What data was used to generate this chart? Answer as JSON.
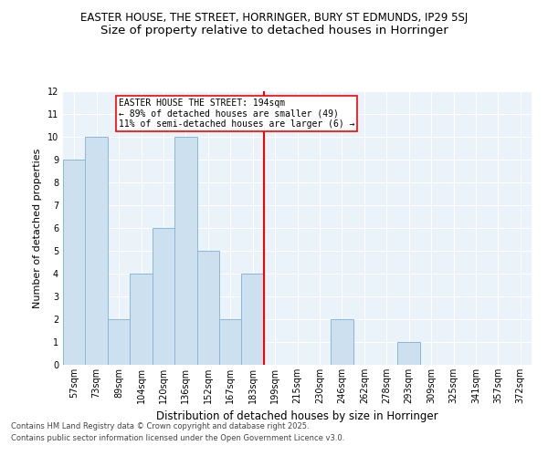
{
  "title1": "EASTER HOUSE, THE STREET, HORRINGER, BURY ST EDMUNDS, IP29 5SJ",
  "title2": "Size of property relative to detached houses in Horringer",
  "xlabel": "Distribution of detached houses by size in Horringer",
  "ylabel": "Number of detached properties",
  "categories": [
    "57sqm",
    "73sqm",
    "89sqm",
    "104sqm",
    "120sqm",
    "136sqm",
    "152sqm",
    "167sqm",
    "183sqm",
    "199sqm",
    "215sqm",
    "230sqm",
    "246sqm",
    "262sqm",
    "278sqm",
    "293sqm",
    "309sqm",
    "325sqm",
    "341sqm",
    "357sqm",
    "372sqm"
  ],
  "values": [
    9,
    10,
    2,
    4,
    6,
    10,
    5,
    2,
    4,
    0,
    0,
    0,
    2,
    0,
    0,
    1,
    0,
    0,
    0,
    0,
    0
  ],
  "bar_color": "#cce0f0",
  "bar_edge_color": "#8ab8d8",
  "reference_line_x": 8.5,
  "annotation_title": "EASTER HOUSE THE STREET: 194sqm",
  "annotation_line1": "← 89% of detached houses are smaller (49)",
  "annotation_line2": "11% of semi-detached houses are larger (6) →",
  "ylim": [
    0,
    12
  ],
  "yticks": [
    0,
    1,
    2,
    3,
    4,
    5,
    6,
    7,
    8,
    9,
    10,
    11,
    12
  ],
  "footnote1": "Contains HM Land Registry data © Crown copyright and database right 2025.",
  "footnote2": "Contains public sector information licensed under the Open Government Licence v3.0.",
  "bg_color": "#eaf2fa",
  "grid_color": "#ffffff",
  "title1_fontsize": 8.5,
  "title2_fontsize": 9.5,
  "ylabel_fontsize": 8,
  "xlabel_fontsize": 8.5,
  "tick_fontsize": 7,
  "annot_fontsize": 7,
  "footnote_fontsize": 6
}
